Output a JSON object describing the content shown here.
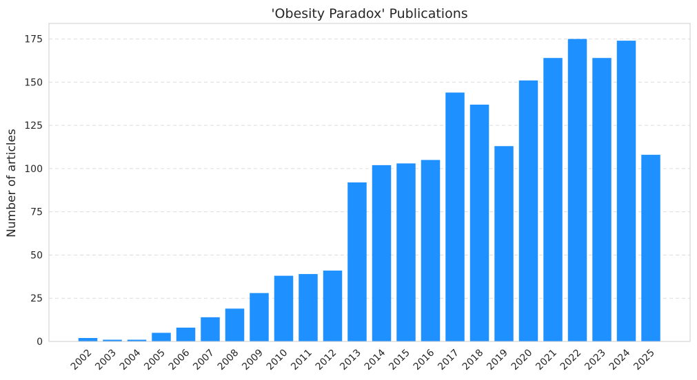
{
  "chart_data": {
    "type": "bar",
    "title": "'Obesity Paradox' Publications",
    "xlabel": "",
    "ylabel": "Number of articles",
    "categories": [
      "2002",
      "2003",
      "2004",
      "2005",
      "2006",
      "2007",
      "2008",
      "2009",
      "2010",
      "2011",
      "2012",
      "2013",
      "2014",
      "2015",
      "2016",
      "2017",
      "2018",
      "2019",
      "2020",
      "2021",
      "2022",
      "2023",
      "2024",
      "2025"
    ],
    "values": [
      2,
      1,
      1,
      5,
      8,
      14,
      19,
      28,
      38,
      39,
      41,
      92,
      102,
      103,
      105,
      144,
      137,
      113,
      151,
      164,
      175,
      164,
      174,
      108
    ],
    "ylim": [
      0,
      184
    ],
    "yticks": [
      0,
      25,
      50,
      75,
      100,
      125,
      150,
      175
    ],
    "grid": true,
    "bar_color": "#1e90ff",
    "grid_color": "#dcdcdc"
  }
}
